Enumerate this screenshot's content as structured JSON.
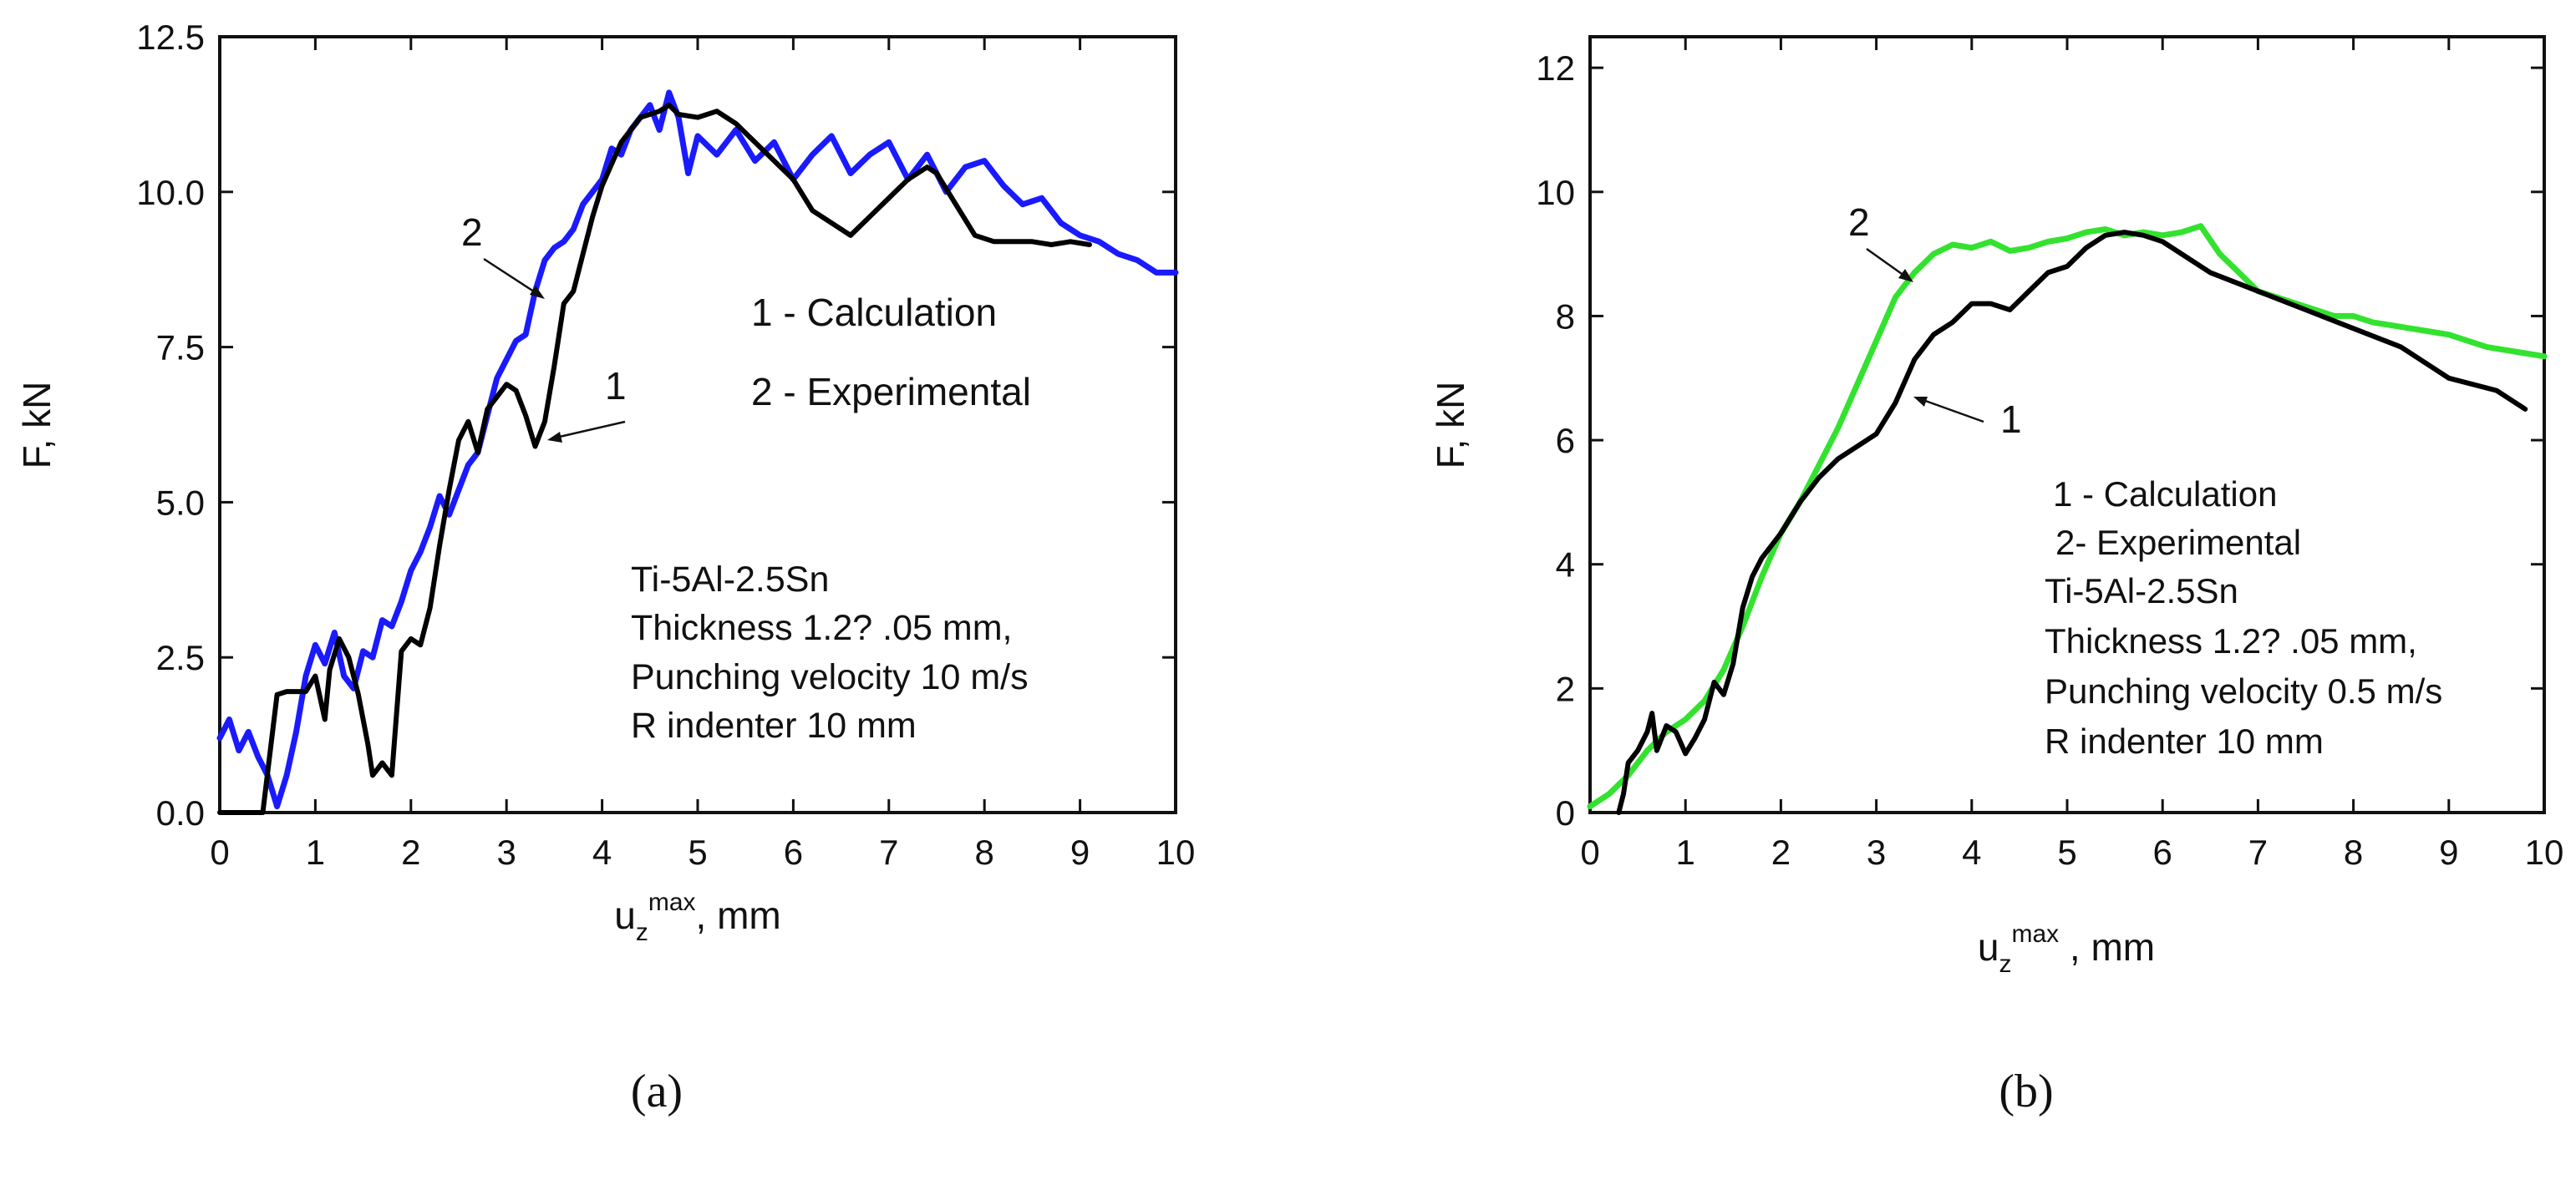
{
  "chart_data": [
    {
      "type": "line",
      "panel_label": "(a)",
      "xlabel": {
        "base": "u",
        "sub": "z",
        "sup": "max",
        "unit": ", mm"
      },
      "ylabel": "F, kN",
      "xlim": [
        0,
        10
      ],
      "ylim": [
        0,
        12.5
      ],
      "xticks": [
        "0",
        "1",
        "2",
        "3",
        "4",
        "5",
        "6",
        "7",
        "8",
        "9",
        "10"
      ],
      "yticks": [
        "0.0",
        "2.5",
        "5.0",
        "7.5",
        "10.0",
        "12.5"
      ],
      "legend": [
        "1 - Calculation",
        "2 - Experimental"
      ],
      "annotation": [
        "Ti-5Al-2.5Sn",
        "Thickness 1.2?  .05 mm,",
        "Punching velocity 10 m/s",
        "R indenter 10 mm"
      ],
      "curve_labels": [
        "1",
        "2"
      ],
      "series": [
        {
          "name": "1 - Calculation",
          "color": "#000000",
          "x": [
            0,
            0.45,
            0.6,
            0.7,
            0.9,
            1.0,
            1.1,
            1.15,
            1.25,
            1.35,
            1.45,
            1.55,
            1.6,
            1.7,
            1.8,
            1.9,
            2.0,
            2.1,
            2.2,
            2.3,
            2.4,
            2.5,
            2.6,
            2.7,
            2.8,
            2.9,
            3.0,
            3.1,
            3.2,
            3.3,
            3.4,
            3.5,
            3.6,
            3.7,
            3.8,
            3.9,
            4.0,
            4.2,
            4.4,
            4.6,
            4.7,
            4.8,
            5.0,
            5.2,
            5.4,
            5.6,
            5.8,
            6.0,
            6.2,
            6.4,
            6.6,
            6.8,
            7.0,
            7.2,
            7.4,
            7.5,
            7.7,
            7.9,
            8.1,
            8.3,
            8.5,
            8.7,
            8.9,
            9.1
          ],
          "y": [
            0,
            0,
            1.9,
            1.95,
            1.95,
            2.2,
            1.5,
            2.3,
            2.8,
            2.5,
            1.9,
            1.1,
            0.6,
            0.8,
            0.6,
            2.6,
            2.8,
            2.7,
            3.3,
            4.3,
            5.2,
            6.0,
            6.3,
            5.8,
            6.5,
            6.7,
            6.9,
            6.8,
            6.4,
            5.9,
            6.3,
            7.2,
            8.2,
            8.4,
            9.0,
            9.6,
            10.1,
            10.8,
            11.2,
            11.3,
            11.4,
            11.25,
            11.2,
            11.3,
            11.1,
            10.8,
            10.5,
            10.2,
            9.7,
            9.5,
            9.3,
            9.6,
            9.9,
            10.2,
            10.4,
            10.3,
            9.8,
            9.3,
            9.2,
            9.2,
            9.2,
            9.15,
            9.2,
            9.15
          ]
        },
        {
          "name": "2 - Experimental",
          "color": "#1a1aff",
          "x": [
            0,
            0.1,
            0.2,
            0.3,
            0.4,
            0.5,
            0.6,
            0.7,
            0.8,
            0.9,
            1.0,
            1.1,
            1.2,
            1.3,
            1.4,
            1.5,
            1.6,
            1.7,
            1.8,
            1.9,
            2.0,
            2.1,
            2.2,
            2.3,
            2.4,
            2.5,
            2.6,
            2.7,
            2.8,
            2.9,
            3.0,
            3.1,
            3.2,
            3.3,
            3.4,
            3.5,
            3.6,
            3.7,
            3.8,
            3.9,
            4.0,
            4.1,
            4.2,
            4.3,
            4.4,
            4.5,
            4.6,
            4.7,
            4.8,
            4.9,
            5.0,
            5.2,
            5.4,
            5.6,
            5.8,
            6.0,
            6.2,
            6.4,
            6.6,
            6.8,
            7.0,
            7.2,
            7.4,
            7.6,
            7.8,
            8.0,
            8.2,
            8.4,
            8.6,
            8.8,
            9.0,
            9.2,
            9.4,
            9.6,
            9.8,
            10.0
          ],
          "y": [
            1.2,
            1.5,
            1.0,
            1.3,
            0.9,
            0.6,
            0.1,
            0.6,
            1.3,
            2.2,
            2.7,
            2.4,
            2.9,
            2.2,
            2.0,
            2.6,
            2.5,
            3.1,
            3.0,
            3.4,
            3.9,
            4.2,
            4.6,
            5.1,
            4.8,
            5.2,
            5.6,
            5.8,
            6.4,
            7.0,
            7.3,
            7.6,
            7.7,
            8.4,
            8.9,
            9.1,
            9.2,
            9.4,
            9.8,
            10.0,
            10.2,
            10.7,
            10.6,
            11.0,
            11.2,
            11.4,
            11.0,
            11.6,
            11.2,
            10.3,
            10.9,
            10.6,
            11.0,
            10.5,
            10.8,
            10.2,
            10.6,
            10.9,
            10.3,
            10.6,
            10.8,
            10.2,
            10.6,
            10.0,
            10.4,
            10.5,
            10.1,
            9.8,
            9.9,
            9.5,
            9.3,
            9.2,
            9.0,
            8.9,
            8.7,
            8.7
          ]
        }
      ]
    },
    {
      "type": "line",
      "panel_label": "(b)",
      "xlabel": {
        "base": "u",
        "sub": "z",
        "sup": "max",
        "unit": " , mm"
      },
      "ylabel": "F, kN",
      "xlim": [
        0,
        10
      ],
      "ylim": [
        0,
        12.5
      ],
      "xticks": [
        "0",
        "1",
        "2",
        "3",
        "4",
        "5",
        "6",
        "7",
        "8",
        "9",
        "10"
      ],
      "yticks": [
        "0",
        "2",
        "4",
        "6",
        "8",
        "10",
        "12"
      ],
      "legend": [
        "1 - Calculation",
        "2- Experimental"
      ],
      "annotation": [
        "Ti-5Al-2.5Sn",
        "Thickness 1.2?  .05 mm,",
        "Punching velocity 0.5 m/s",
        "R indenter 10 mm"
      ],
      "curve_labels": [
        "1",
        "2"
      ],
      "series": [
        {
          "name": "1 - Calculation",
          "color": "#000000",
          "x": [
            0.3,
            0.35,
            0.4,
            0.5,
            0.6,
            0.65,
            0.7,
            0.8,
            0.9,
            1.0,
            1.1,
            1.2,
            1.3,
            1.4,
            1.5,
            1.6,
            1.7,
            1.8,
            2.0,
            2.2,
            2.4,
            2.6,
            2.8,
            3.0,
            3.2,
            3.4,
            3.6,
            3.8,
            4.0,
            4.2,
            4.4,
            4.6,
            4.8,
            5.0,
            5.2,
            5.4,
            5.6,
            5.8,
            6.0,
            6.5,
            7.0,
            7.5,
            8.0,
            8.5,
            9.0,
            9.5,
            9.8
          ],
          "y": [
            0,
            0.3,
            0.8,
            1.0,
            1.3,
            1.6,
            1.0,
            1.4,
            1.3,
            0.95,
            1.2,
            1.5,
            2.1,
            1.9,
            2.4,
            3.3,
            3.8,
            4.1,
            4.5,
            5.0,
            5.4,
            5.7,
            5.9,
            6.1,
            6.6,
            7.3,
            7.7,
            7.9,
            8.2,
            8.2,
            8.1,
            8.4,
            8.7,
            8.8,
            9.1,
            9.3,
            9.35,
            9.3,
            9.2,
            8.7,
            8.4,
            8.1,
            7.8,
            7.5,
            7.0,
            6.8,
            6.5
          ]
        },
        {
          "name": "2- Experimental",
          "color": "#33e22e",
          "x": [
            0,
            0.2,
            0.4,
            0.6,
            0.8,
            1.0,
            1.2,
            1.4,
            1.6,
            1.8,
            2.0,
            2.2,
            2.4,
            2.6,
            2.8,
            3.0,
            3.2,
            3.4,
            3.6,
            3.8,
            4.0,
            4.2,
            4.4,
            4.6,
            4.8,
            5.0,
            5.2,
            5.4,
            5.6,
            5.8,
            6.0,
            6.2,
            6.4,
            6.6,
            6.8,
            7.0,
            7.2,
            7.4,
            7.6,
            7.8,
            8.0,
            8.2,
            8.4,
            8.6,
            8.8,
            9.0,
            9.2,
            9.4,
            9.6,
            9.8,
            10.0
          ],
          "y": [
            0.1,
            0.3,
            0.6,
            1.0,
            1.3,
            1.5,
            1.8,
            2.3,
            3.0,
            3.8,
            4.5,
            5.0,
            5.6,
            6.2,
            6.9,
            7.6,
            8.3,
            8.7,
            9.0,
            9.15,
            9.1,
            9.2,
            9.05,
            9.1,
            9.2,
            9.25,
            9.35,
            9.4,
            9.3,
            9.35,
            9.3,
            9.35,
            9.45,
            9.0,
            8.7,
            8.4,
            8.3,
            8.2,
            8.1,
            8.0,
            8.0,
            7.9,
            7.85,
            7.8,
            7.75,
            7.7,
            7.6,
            7.5,
            7.45,
            7.4,
            7.35
          ]
        }
      ]
    }
  ]
}
